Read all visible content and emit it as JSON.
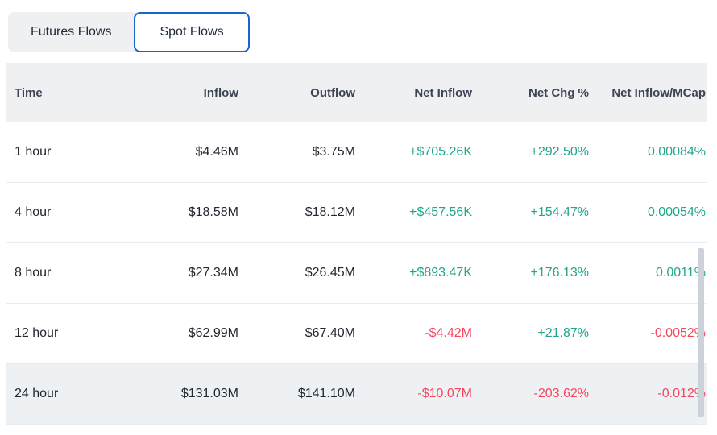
{
  "tabs": [
    {
      "label": "Futures Flows",
      "active": false
    },
    {
      "label": "Spot Flows",
      "active": true
    }
  ],
  "colors": {
    "green": "#20a68b",
    "red": "#f5465d",
    "tab_active_border": "#1565d2",
    "tab_group_bg": "#eef0f1",
    "header_bg": "#eef0f2",
    "highlight_row_bg": "#eef1f4"
  },
  "table": {
    "columns": [
      "Time",
      "Inflow",
      "Outflow",
      "Net Inflow",
      "Net Chg %",
      "Net Inflow/MCap"
    ],
    "rows": [
      {
        "time": "1 hour",
        "inflow": "$4.46M",
        "outflow": "$3.75M",
        "net_inflow": "+$705.26K",
        "net_chg": "+292.50%",
        "net_inflow_mcap": "0.00084%",
        "net_inflow_color": "green",
        "net_chg_color": "green",
        "net_inflow_mcap_color": "green",
        "highlight": false
      },
      {
        "time": "4 hour",
        "inflow": "$18.58M",
        "outflow": "$18.12M",
        "net_inflow": "+$457.56K",
        "net_chg": "+154.47%",
        "net_inflow_mcap": "0.00054%",
        "net_inflow_color": "green",
        "net_chg_color": "green",
        "net_inflow_mcap_color": "green",
        "highlight": false
      },
      {
        "time": "8 hour",
        "inflow": "$27.34M",
        "outflow": "$26.45M",
        "net_inflow": "+$893.47K",
        "net_chg": "+176.13%",
        "net_inflow_mcap": "0.0011%",
        "net_inflow_color": "green",
        "net_chg_color": "green",
        "net_inflow_mcap_color": "green",
        "highlight": false
      },
      {
        "time": "12 hour",
        "inflow": "$62.99M",
        "outflow": "$67.40M",
        "net_inflow": "-$4.42M",
        "net_chg": "+21.87%",
        "net_inflow_mcap": "-0.0052%",
        "net_inflow_color": "red",
        "net_chg_color": "green",
        "net_inflow_mcap_color": "red",
        "highlight": true
      },
      {
        "time": "24 hour",
        "inflow": "$131.03M",
        "outflow": "$141.10M",
        "net_inflow": "-$10.07M",
        "net_chg": "-203.62%",
        "net_inflow_mcap": "-0.012%",
        "net_inflow_color": "red",
        "net_chg_color": "red",
        "net_inflow_mcap_color": "red",
        "highlight": true
      }
    ]
  }
}
